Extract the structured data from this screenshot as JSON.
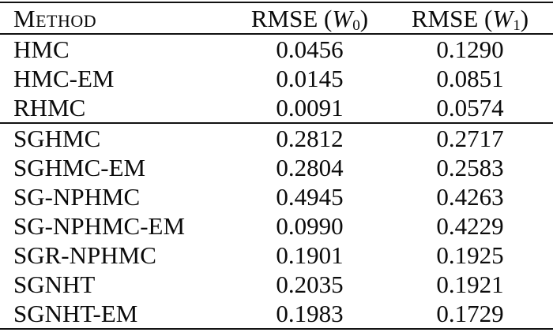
{
  "colors": {
    "background": "#ffffff",
    "text": "#0b0b0b",
    "rule": "#111111"
  },
  "table": {
    "header": {
      "method_label": "Method",
      "col_w0": {
        "prefix": "RMSE (",
        "var": "W",
        "sub": "0",
        "suffix": ")"
      },
      "col_w1": {
        "prefix": "RMSE (",
        "var": "W",
        "sub": "1",
        "suffix": ")"
      }
    },
    "groups": [
      {
        "rows": [
          {
            "method": "HMC",
            "w0": "0.0456",
            "w1": "0.1290"
          },
          {
            "method": "HMC-EM",
            "w0": "0.0145",
            "w1": "0.0851"
          },
          {
            "method": "RHMC",
            "w0": "0.0091",
            "w1": "0.0574"
          }
        ]
      },
      {
        "rows": [
          {
            "method": "SGHMC",
            "w0": "0.2812",
            "w1": "0.2717"
          },
          {
            "method": "SGHMC-EM",
            "w0": "0.2804",
            "w1": "0.2583"
          },
          {
            "method": "SG-NPHMC",
            "w0": "0.4945",
            "w1": "0.4263"
          },
          {
            "method": "SG-NPHMC-EM",
            "w0": "0.0990",
            "w1": "0.4229"
          },
          {
            "method": "SGR-NPHMC",
            "w0": "0.1901",
            "w1": "0.1925"
          },
          {
            "method": "SGNHT",
            "w0": "0.2035",
            "w1": "0.1921"
          },
          {
            "method": "SGNHT-EM",
            "w0": "0.1983",
            "w1": "0.1729"
          }
        ]
      }
    ]
  },
  "chart_data": {
    "type": "table",
    "columns": [
      "Method",
      "RMSE (W0)",
      "RMSE (W1)"
    ],
    "rows": [
      [
        "HMC",
        0.0456,
        0.129
      ],
      [
        "HMC-EM",
        0.0145,
        0.0851
      ],
      [
        "RHMC",
        0.0091,
        0.0574
      ],
      [
        "SGHMC",
        0.2812,
        0.2717
      ],
      [
        "SGHMC-EM",
        0.2804,
        0.2583
      ],
      [
        "SG-NPHMC",
        0.4945,
        0.4263
      ],
      [
        "SG-NPHMC-EM",
        0.099,
        0.4229
      ],
      [
        "SGR-NPHMC",
        0.1901,
        0.1925
      ],
      [
        "SGNHT",
        0.2035,
        0.1921
      ],
      [
        "SGNHT-EM",
        0.1983,
        0.1729
      ]
    ]
  }
}
